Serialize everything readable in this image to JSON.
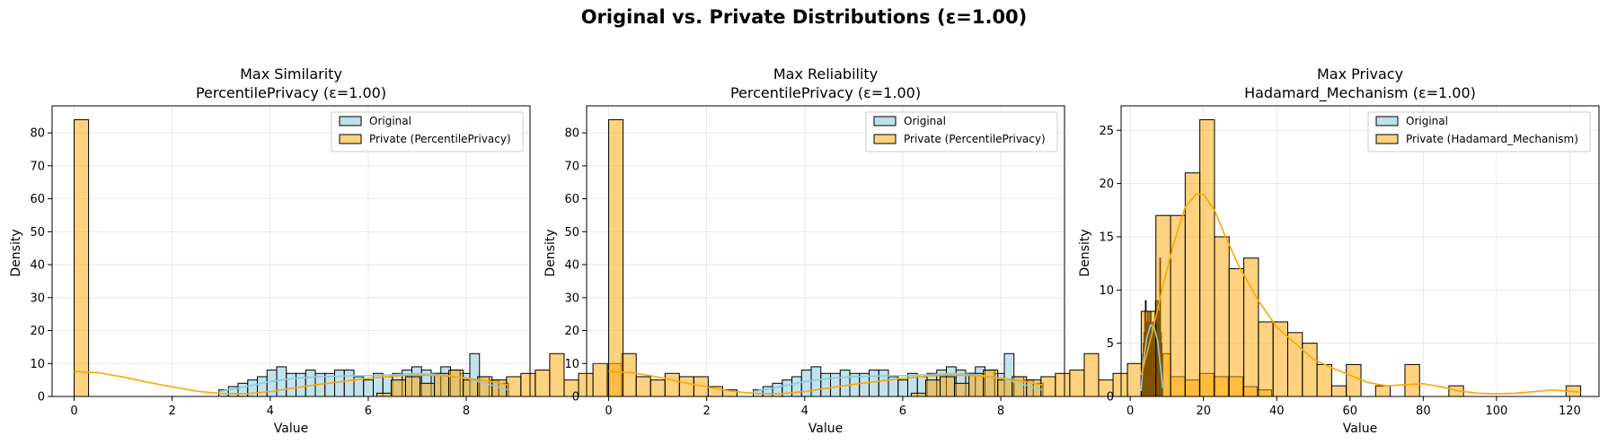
{
  "suptitle": "Original vs. Private Distributions (ε=1.00)",
  "colors": {
    "original": "#add8e6",
    "private": "#ffa500",
    "bar_edge": "#000000",
    "kde_original": "#87cedf",
    "kde_private": "#ffa500",
    "overlap": "#7a4d00"
  },
  "chart_data": [
    {
      "type": "histogram",
      "title_line1": "Max Similarity",
      "title_line2": "PercentilePrivacy (ε=1.00)",
      "xlabel": "Value",
      "ylabel": "Density",
      "xlim": [
        -0.45,
        9.3
      ],
      "ylim": [
        0,
        88.2
      ],
      "xticks": [
        0,
        2,
        4,
        6,
        8
      ],
      "yticks": [
        0,
        10,
        20,
        30,
        40,
        50,
        60,
        70,
        80
      ],
      "grid": true,
      "legend_position": "top-right",
      "legend": [
        "Original",
        "Private (PercentilePrivacy)"
      ],
      "series": [
        {
          "name": "Original",
          "bin_start": 2.95,
          "bin_width": 0.197,
          "counts": [
            2,
            3,
            4,
            5,
            6,
            8,
            9,
            7,
            7,
            8,
            7,
            7,
            8,
            8,
            6,
            5,
            7,
            6,
            7,
            8,
            9,
            8,
            7,
            9,
            8,
            7,
            13,
            6,
            5,
            4
          ]
        },
        {
          "name": "Private (PercentilePrivacy)",
          "bin_start": 0.0,
          "bin_width": 0.294,
          "counts": [
            84,
            0,
            0,
            0,
            0,
            0,
            0,
            0,
            0,
            0,
            0,
            0,
            0,
            0,
            0,
            0,
            0,
            0,
            0,
            0,
            0,
            1,
            5,
            6,
            4,
            7,
            8,
            5,
            6,
            5,
            6,
            7,
            8,
            13,
            5,
            7,
            10,
            10,
            13,
            6,
            5,
            7,
            6,
            6,
            3,
            2
          ]
        }
      ],
      "kde": [
        {
          "name": "Original",
          "x": [
            2.95,
            3.5,
            4.0,
            4.5,
            5.0,
            5.5,
            6.0,
            6.5,
            7.0,
            7.5,
            8.0,
            8.5,
            8.85
          ],
          "y": [
            1.5,
            3.0,
            4.5,
            5.5,
            6.0,
            6.2,
            6.3,
            6.6,
            7.0,
            6.6,
            5.5,
            3.5,
            2.0
          ]
        },
        {
          "name": "Private (PercentilePrivacy)",
          "x": [
            0,
            0.5,
            1.0,
            1.5,
            2.0,
            2.5,
            3.0,
            3.5,
            4.0,
            4.5,
            5.0,
            5.5,
            6.0,
            6.5,
            7.0,
            7.5,
            8.0,
            8.5,
            8.85
          ],
          "y": [
            7.6,
            7.2,
            5.9,
            4.3,
            2.9,
            1.6,
            0.9,
            0.8,
            1.5,
            2.6,
            3.7,
            4.6,
            5.5,
            6.2,
            6.5,
            6.3,
            5.6,
            4.5,
            3.5
          ]
        }
      ]
    },
    {
      "type": "histogram",
      "title_line1": "Max Reliability",
      "title_line2": "PercentilePrivacy (ε=1.00)",
      "xlabel": "Value",
      "ylabel": "Density",
      "xlim": [
        -0.45,
        9.3
      ],
      "ylim": [
        0,
        88.2
      ],
      "xticks": [
        0,
        2,
        4,
        6,
        8
      ],
      "yticks": [
        0,
        10,
        20,
        30,
        40,
        50,
        60,
        70,
        80
      ],
      "grid": true,
      "legend_position": "top-right",
      "legend": [
        "Original",
        "Private (PercentilePrivacy)"
      ],
      "series": [
        {
          "name": "Original",
          "bin_start": 2.95,
          "bin_width": 0.197,
          "counts": [
            2,
            3,
            4,
            5,
            6,
            8,
            9,
            7,
            7,
            8,
            7,
            7,
            8,
            8,
            6,
            5,
            7,
            6,
            7,
            8,
            9,
            8,
            7,
            9,
            8,
            7,
            13,
            6,
            5,
            4
          ]
        },
        {
          "name": "Private (PercentilePrivacy)",
          "bin_start": 0.0,
          "bin_width": 0.294,
          "counts": [
            84,
            0,
            0,
            0,
            0,
            0,
            0,
            0,
            0,
            0,
            0,
            0,
            0,
            0,
            0,
            0,
            0,
            0,
            0,
            0,
            0,
            1,
            5,
            6,
            4,
            7,
            8,
            5,
            6,
            5,
            6,
            7,
            8,
            13,
            5,
            7,
            10,
            10,
            13,
            6,
            5,
            7,
            6,
            6,
            3,
            2
          ]
        }
      ],
      "kde": [
        {
          "name": "Original",
          "x": [
            2.95,
            3.5,
            4.0,
            4.5,
            5.0,
            5.5,
            6.0,
            6.5,
            7.0,
            7.5,
            8.0,
            8.5,
            8.85
          ],
          "y": [
            1.5,
            3.0,
            4.5,
            5.5,
            6.0,
            6.2,
            6.3,
            6.6,
            7.0,
            6.6,
            5.5,
            3.5,
            2.0
          ]
        },
        {
          "name": "Private (PercentilePrivacy)",
          "x": [
            0,
            0.5,
            1.0,
            1.5,
            2.0,
            2.5,
            3.0,
            3.5,
            4.0,
            4.5,
            5.0,
            5.5,
            6.0,
            6.5,
            7.0,
            7.5,
            8.0,
            8.5,
            8.85
          ],
          "y": [
            7.6,
            7.2,
            5.9,
            4.3,
            2.9,
            1.6,
            0.9,
            0.8,
            1.5,
            2.6,
            3.7,
            4.6,
            5.5,
            6.2,
            6.5,
            6.3,
            5.6,
            4.5,
            3.5
          ]
        }
      ]
    },
    {
      "type": "histogram",
      "title_line1": "Max Privacy",
      "title_line2": "Hadamard_Mechanism (ε=1.00)",
      "xlabel": "Value",
      "ylabel": "Density",
      "xlim": [
        -2.5,
        128
      ],
      "ylim": [
        0,
        27.3
      ],
      "xticks": [
        0,
        20,
        40,
        60,
        80,
        100,
        120
      ],
      "yticks": [
        0,
        5,
        10,
        15,
        20,
        25
      ],
      "grid": true,
      "legend_position": "top-right",
      "legend": [
        "Original",
        "Private (Hadamard_Mechanism)"
      ],
      "series": [
        {
          "name": "Original",
          "bin_start": 2.95,
          "bin_width": 0.197,
          "counts": [
            2,
            3,
            4,
            5,
            6,
            8,
            9,
            7,
            7,
            8,
            7,
            7,
            8,
            8,
            6,
            5,
            7,
            6,
            7,
            8,
            9,
            8,
            7,
            9,
            8,
            7,
            13,
            6,
            5,
            4
          ]
        },
        {
          "name": "Private (Hadamard_Mechanism)",
          "bin_start": 3.0,
          "bin_width": 4.0,
          "counts": [
            8,
            17,
            17,
            21,
            26,
            15,
            12,
            13,
            7,
            7,
            6,
            5,
            3,
            1,
            3,
            0,
            1,
            0,
            3,
            0,
            0,
            1,
            0,
            0,
            0,
            0,
            0,
            0,
            0,
            1
          ]
        }
      ],
      "kde": [
        {
          "name": "Original",
          "x": [
            2.95,
            3.5,
            4.5,
            5.5,
            6.5,
            7.5,
            8.5,
            8.85
          ],
          "y": [
            0.5,
            3.0,
            5.5,
            6.7,
            6.5,
            5.2,
            2.0,
            0.8
          ]
        },
        {
          "name": "Private (Hadamard_Mechanism)",
          "x": [
            3,
            6,
            9,
            12,
            15,
            18,
            20,
            23,
            26,
            30,
            35,
            40,
            45,
            50,
            55,
            60,
            65,
            70,
            75,
            80,
            85,
            90,
            95,
            100,
            105,
            110,
            115,
            120,
            123
          ],
          "y": [
            2.0,
            6.0,
            10.5,
            14.5,
            17.8,
            19.0,
            19.0,
            17.5,
            15.0,
            12.0,
            9.0,
            6.5,
            5.0,
            3.5,
            2.7,
            2.0,
            1.3,
            1.0,
            1.1,
            1.2,
            0.9,
            0.5,
            0.3,
            0.25,
            0.3,
            0.45,
            0.6,
            0.5,
            0.4
          ]
        }
      ]
    }
  ]
}
